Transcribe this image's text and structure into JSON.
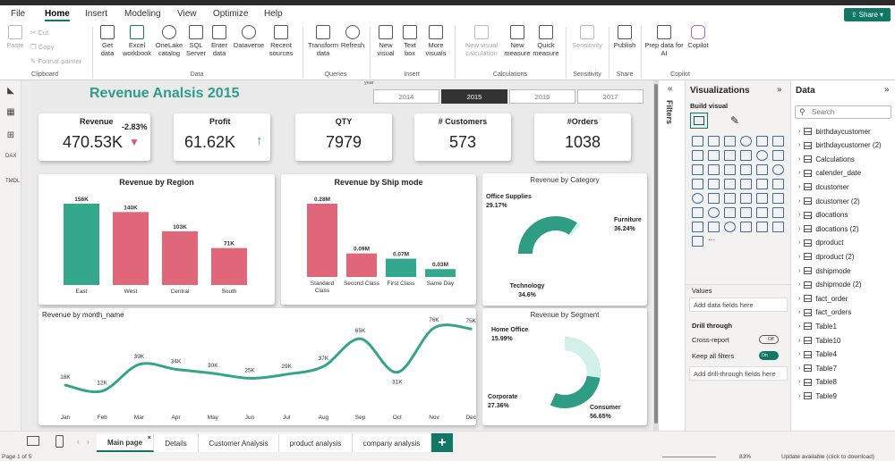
{
  "menu": [
    "File",
    "Home",
    "Insert",
    "Modeling",
    "View",
    "Optimize",
    "Help"
  ],
  "share_label": "Share",
  "ribbon": {
    "clipboard": {
      "paste": "Paste",
      "cut": "Cut",
      "copy": "Copy",
      "format_painter": "Format painter",
      "group": "Clipboard"
    },
    "data": {
      "items": [
        "Get data",
        "Excel workbook",
        "OneLake catalog",
        "SQL Server",
        "Enter data",
        "Dataverse",
        "Recent sources"
      ],
      "group": "Data"
    },
    "queries": {
      "items": [
        "Transform data",
        "Refresh"
      ],
      "group": "Queries"
    },
    "insert": {
      "items": [
        "New visual",
        "Text box",
        "More visuals"
      ],
      "group": "Insert"
    },
    "calculations": {
      "items": [
        "New visual calculation",
        "New measure",
        "Quick measure"
      ],
      "group": "Calculations"
    },
    "sensitivity": {
      "items": [
        "Sensitivity"
      ],
      "group": "Sensitivity"
    },
    "share": {
      "items": [
        "Publish"
      ],
      "group": "Share"
    },
    "copilot": {
      "items": [
        "Prep data for AI",
        "Copilot"
      ],
      "group": "Copilot"
    }
  },
  "report": {
    "title": "Revenue Analsis 2015",
    "year_label": "year",
    "years": [
      "2014",
      "2015",
      "2016",
      "2017"
    ],
    "selected_year": "2015",
    "kpis": [
      {
        "title": "Revenue",
        "value": "470.53K",
        "change": "-2.83%",
        "trend": "down",
        "trend_color": "#d9586f"
      },
      {
        "title": "Profit",
        "value": "61.62K",
        "trend": "up",
        "trend_color": "#2b9c82"
      },
      {
        "title": "QTY",
        "value": "7979"
      },
      {
        "title": "# Customers",
        "value": "573"
      },
      {
        "title": "#Orders",
        "value": "1038"
      }
    ]
  },
  "chart_data": [
    {
      "type": "bar",
      "title": "Revenue by Region",
      "categories": [
        "East",
        "West",
        "Central",
        "South"
      ],
      "values": [
        156,
        140,
        103,
        71
      ],
      "value_labels": [
        "156K",
        "140K",
        "103K",
        "71K"
      ],
      "colors": [
        "#33a88d",
        "#e0667a",
        "#e0667a",
        "#e0667a"
      ]
    },
    {
      "type": "bar",
      "title": "Revenue by Ship mode",
      "categories": [
        "Standard Class",
        "Second Class",
        "First Class",
        "Same Day"
      ],
      "values": [
        0.28,
        0.09,
        0.07,
        0.03
      ],
      "value_labels": [
        "0.28M",
        "0.09M",
        "0.07M",
        "0.03M"
      ],
      "colors": [
        "#e0667a",
        "#e0667a",
        "#33a88d",
        "#33a88d"
      ]
    },
    {
      "type": "pie",
      "title": "Revenue by Category",
      "slices": [
        {
          "label": "Office Supplies",
          "value": 29.17,
          "value_label": "29.17%",
          "color": "#6ccab5"
        },
        {
          "label": "Furniture",
          "value": 36.24,
          "value_label": "36.24%",
          "color": "#d4f0ea"
        },
        {
          "label": "Technology",
          "value": 34.6,
          "value_label": "34.6%",
          "color": "#2f9d84"
        }
      ]
    },
    {
      "type": "line",
      "title": "Revenue by month_name",
      "categories": [
        "Jan",
        "Feb",
        "Mar",
        "Apr",
        "May",
        "Jun",
        "Jul",
        "Aug",
        "Sep",
        "Oct",
        "Nov",
        "Dec"
      ],
      "values": [
        18,
        12,
        39,
        34,
        30,
        25,
        29,
        37,
        65,
        31,
        76,
        75
      ],
      "value_labels": [
        "18K",
        "12K",
        "39K",
        "34K",
        "30K",
        "25K",
        "29K",
        "37K",
        "65K",
        "31K",
        "76K",
        "75K"
      ],
      "color": "#35a58a"
    },
    {
      "type": "pie",
      "title": "Revenue by Segment",
      "slices": [
        {
          "label": "Home Office",
          "value": 15.99,
          "value_label": "15.99%",
          "color": "#6ccab5"
        },
        {
          "label": "Consumer",
          "value": 56.65,
          "value_label": "56.65%",
          "color": "#2f9d84"
        },
        {
          "label": "Corporate",
          "value": 27.36,
          "value_label": "27.36%",
          "color": "#d4f0ea"
        }
      ]
    }
  ],
  "filters_label": "Filters",
  "visualizations": {
    "title": "Visualizations",
    "build": "Build visual",
    "values": "Values",
    "values_placeholder": "Add data fields here",
    "drill": "Drill through",
    "cross_report": "Cross-report",
    "cross_state": "Off",
    "keep_filters": "Keep all filters",
    "keep_state": "On",
    "drill_placeholder": "Add drill-through fields here"
  },
  "data_pane": {
    "title": "Data",
    "search_placeholder": "Search",
    "tables": [
      "birthdaycustomer",
      "birthdaycustomer (2)",
      "Calculations",
      "calender_date",
      "dcustomer",
      "dcustomer (2)",
      "dlocations",
      "dlocations (2)",
      "dproduct",
      "dproduct (2)",
      "dshipmode",
      "dshipmode (2)",
      "fact_order",
      "fact_orders",
      "Table1",
      "Table10",
      "Table4",
      "Table7",
      "Table8",
      "Table9"
    ]
  },
  "tabs": [
    "Main page",
    "Details",
    "Customer Analysis",
    "product analysis",
    "company analysis"
  ],
  "status": {
    "page": "Page 1 of 5",
    "zoom": "83%",
    "update": "Update available (click to download)"
  }
}
